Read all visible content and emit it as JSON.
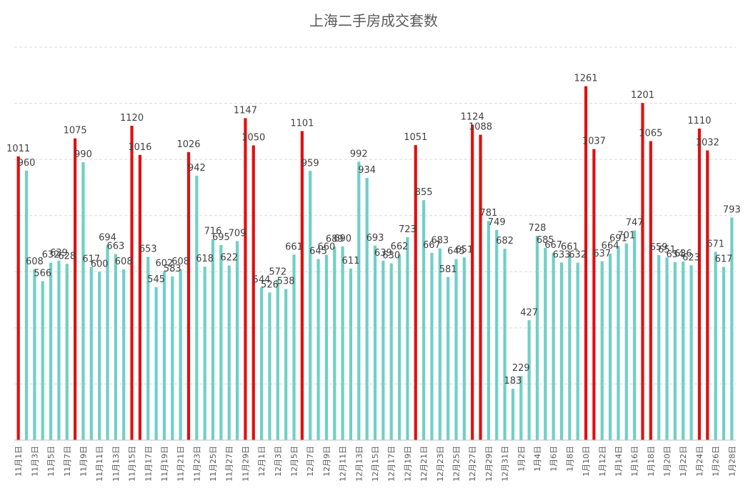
{
  "chart_data": {
    "type": "bar",
    "title": "上海二手房成交套数",
    "xlabel": "",
    "ylabel": "",
    "ylim": [
      0,
      1400
    ],
    "grid": true,
    "legend": "none",
    "colors": {
      "normal": "#6fd0c6",
      "highlight": "#e01010"
    },
    "categories": [
      "11月1日",
      "11月2日",
      "11月3日",
      "11月4日",
      "11月5日",
      "11月6日",
      "11月7日",
      "11月8日",
      "11月9日",
      "11月10日",
      "11月11日",
      "11月12日",
      "11月13日",
      "11月14日",
      "11月15日",
      "11月16日",
      "11月17日",
      "11月18日",
      "11月19日",
      "11月20日",
      "11月21日",
      "11月22日",
      "11月23日",
      "11月24日",
      "11月25日",
      "11月26日",
      "11月27日",
      "11月28日",
      "11月29日",
      "11月30日",
      "12月1日",
      "12月2日",
      "12月3日",
      "12月4日",
      "12月5日",
      "12月6日",
      "12月7日",
      "12月8日",
      "12月9日",
      "12月10日",
      "12月11日",
      "12月12日",
      "12月13日",
      "12月14日",
      "12月15日",
      "12月16日",
      "12月17日",
      "12月18日",
      "12月19日",
      "12月20日",
      "12月21日",
      "12月22日",
      "12月23日",
      "12月24日",
      "12月25日",
      "12月26日",
      "12月27日",
      "12月28日",
      "12月29日",
      "12月30日",
      "12月31日",
      "1月1日",
      "1月2日",
      "1月3日",
      "1月4日",
      "1月5日",
      "1月6日",
      "1月7日",
      "1月8日",
      "1月9日",
      "1月10日",
      "1月11日",
      "1月12日",
      "1月13日",
      "1月14日",
      "1月15日",
      "1月16日",
      "1月17日",
      "1月18日",
      "1月19日",
      "1月20日",
      "1月21日",
      "1月22日",
      "1月23日",
      "1月24日",
      "1月25日",
      "1月26日",
      "1月27日",
      "1月28日"
    ],
    "values": [
      1011,
      960,
      608,
      566,
      632,
      639,
      628,
      1075,
      990,
      617,
      600,
      694,
      663,
      608,
      1120,
      1016,
      653,
      545,
      602,
      583,
      608,
      1026,
      942,
      618,
      716,
      695,
      622,
      709,
      1147,
      1050,
      544,
      526,
      572,
      538,
      661,
      1101,
      959,
      645,
      660,
      689,
      690,
      611,
      992,
      934,
      693,
      639,
      630,
      662,
      723,
      1051,
      855,
      667,
      683,
      581,
      645,
      651,
      1124,
      1088,
      781,
      749,
      682,
      183,
      229,
      427,
      728,
      685,
      667,
      633,
      661,
      632,
      1261,
      1037,
      637,
      664,
      691,
      701,
      747,
      1201,
      1065,
      659,
      651,
      634,
      636,
      623,
      1110,
      1032,
      671,
      617,
      793
    ],
    "highlighted": [
      "11月1日",
      "11月8日",
      "11月15日",
      "11月16日",
      "11月22日",
      "11月29日",
      "11月30日",
      "12月6日",
      "12月20日",
      "12月27日",
      "12月28日",
      "1月10日",
      "1月11日",
      "1月17日",
      "1月18日",
      "1月24日",
      "1月25日"
    ],
    "xtick_labels": [
      "11月1日",
      "11月3日",
      "11月5日",
      "11月7日",
      "11月9日",
      "11月11日",
      "11月13日",
      "11月15日",
      "11月17日",
      "11月19日",
      "11月21日",
      "11月23日",
      "11月25日",
      "11月27日",
      "11月29日",
      "12月1日",
      "12月3日",
      "12月5日",
      "12月7日",
      "12月9日",
      "12月11日",
      "12月13日",
      "12月15日",
      "12月17日",
      "12月19日",
      "12月21日",
      "12月23日",
      "12月25日",
      "12月27日",
      "12月29日",
      "12月31日",
      "1月2日",
      "1月4日",
      "1月6日",
      "1月8日",
      "1月10日",
      "1月12日",
      "1月14日",
      "1月16日",
      "1月18日",
      "1月20日",
      "1月22日",
      "1月24日",
      "1月26日",
      "1月28日"
    ]
  }
}
